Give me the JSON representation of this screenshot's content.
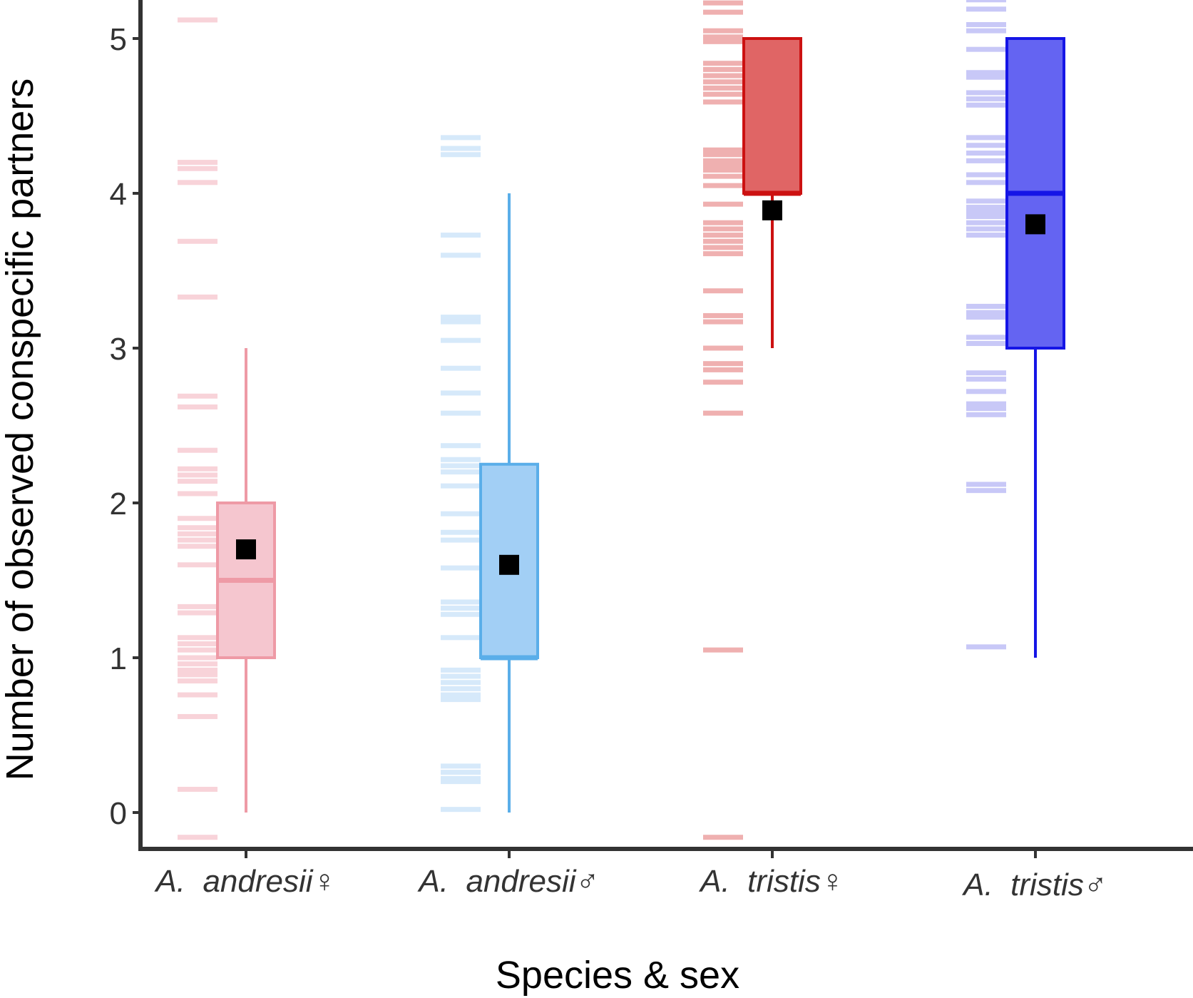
{
  "chart_data": {
    "type": "box",
    "title": "",
    "xlabel": "Species & sex",
    "ylabel": "Number of observed conspecific partners",
    "ylim": [
      -0.25,
      5.25
    ],
    "yticks": [
      "0",
      "1",
      "2",
      "3",
      "4",
      "5"
    ],
    "grid": false,
    "legend": "none",
    "categories": [
      "A.  andresii♀",
      "A.  andresii♂",
      "A.  tristis♀",
      "A.  tristis♂"
    ],
    "series": [
      {
        "category": "A.  andresii♀",
        "color": "#ee9aa6",
        "fill": "#f5c6cf",
        "rug_color": "#f8d3d9",
        "min": 0,
        "q1": 1,
        "median": 1.5,
        "q3": 2,
        "max": 3,
        "mean": 1.7,
        "rug": [
          5.12,
          4.2,
          4.16,
          4.07,
          3.69,
          3.33,
          2.69,
          2.62,
          2.34,
          2.22,
          2.18,
          2.14,
          2.06,
          1.9,
          1.84,
          1.8,
          1.76,
          1.72,
          1.6,
          1.33,
          1.29,
          1.13,
          1.09,
          1.05,
          1.0,
          0.96,
          0.92,
          0.89,
          0.85,
          0.76,
          0.62,
          0.15,
          -0.16
        ]
      },
      {
        "category": "A.  andresii♂",
        "color": "#5aaee9",
        "fill": "#a2cff5",
        "rug_color": "#d6e9fa",
        "min": 0,
        "q1": 1,
        "median": 1,
        "q3": 2.25,
        "max": 4,
        "mean": 1.6,
        "rug": [
          4.36,
          4.29,
          4.25,
          3.73,
          3.6,
          3.2,
          3.17,
          3.05,
          2.87,
          2.71,
          2.58,
          2.37,
          2.28,
          2.24,
          2.2,
          2.11,
          1.93,
          1.81,
          1.76,
          1.58,
          1.36,
          1.32,
          1.28,
          1.13,
          0.92,
          0.88,
          0.84,
          0.8,
          0.76,
          0.73,
          0.3,
          0.26,
          0.22,
          0.2,
          0.02
        ]
      },
      {
        "category": "A.  tristis♀",
        "color": "#cc1111",
        "fill": "#e06565",
        "rug_color": "#efb0b0",
        "min": 3,
        "q1": 4,
        "median": 4,
        "q3": 5,
        "max": 5,
        "mean": 3.89,
        "rug": [
          5.23,
          5.17,
          5.05,
          5.01,
          4.98,
          4.84,
          4.8,
          4.76,
          4.72,
          4.68,
          4.64,
          4.59,
          4.28,
          4.25,
          4.21,
          4.18,
          4.15,
          4.11,
          4.05,
          3.93,
          3.81,
          3.77,
          3.73,
          3.69,
          3.65,
          3.61,
          3.37,
          3.21,
          3.17,
          3.0,
          2.9,
          2.86,
          2.78,
          2.58,
          1.05,
          -0.16
        ]
      },
      {
        "category": "A.  tristis♂",
        "color": "#1515e6",
        "fill": "#6464f2",
        "rug_color": "#c8c8f7",
        "min": 1,
        "q1": 3,
        "median": 4,
        "q3": 5,
        "max": 5,
        "mean": 3.8,
        "rug": [
          5.25,
          5.19,
          5.09,
          5.05,
          4.93,
          4.78,
          4.75,
          4.65,
          4.61,
          4.57,
          4.36,
          4.31,
          4.26,
          4.21,
          4.12,
          4.07,
          3.95,
          3.91,
          3.88,
          3.85,
          3.81,
          3.77,
          3.73,
          3.27,
          3.23,
          3.2,
          3.07,
          3.03,
          2.84,
          2.8,
          2.72,
          2.64,
          2.61,
          2.57,
          2.12,
          2.08,
          1.07
        ]
      }
    ]
  }
}
